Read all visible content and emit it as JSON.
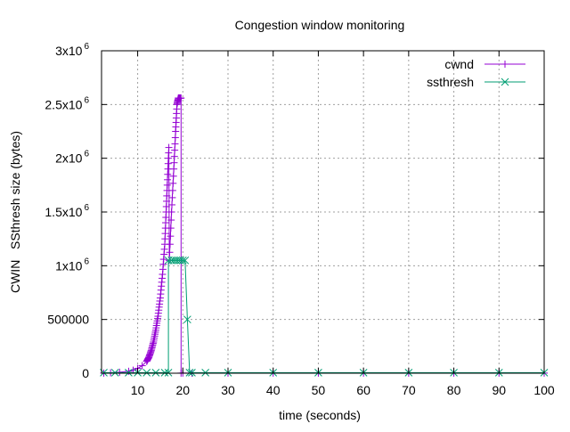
{
  "chart_data": {
    "type": "line",
    "title": "Congestion window monitoring",
    "xlabel": "time (seconds)",
    "ylabel": "CWIN   SSthresh size (bytes)",
    "xlim": [
      2,
      100
    ],
    "ylim": [
      0,
      3000000
    ],
    "grid": true,
    "legend_position": "top-right",
    "x_ticks": [
      {
        "value": 10,
        "label": "10"
      },
      {
        "value": 20,
        "label": "20"
      },
      {
        "value": 30,
        "label": "30"
      },
      {
        "value": 40,
        "label": "40"
      },
      {
        "value": 50,
        "label": "50"
      },
      {
        "value": 60,
        "label": "60"
      },
      {
        "value": 70,
        "label": "70"
      },
      {
        "value": 80,
        "label": "80"
      },
      {
        "value": 90,
        "label": "90"
      },
      {
        "value": 100,
        "label": "100"
      }
    ],
    "y_ticks": [
      {
        "value": 0,
        "label": "0",
        "exp": ""
      },
      {
        "value": 500000,
        "label": "500000",
        "exp": ""
      },
      {
        "value": 1000000,
        "label": "1x10",
        "exp": "6"
      },
      {
        "value": 1500000,
        "label": "1.5x10",
        "exp": "6"
      },
      {
        "value": 2000000,
        "label": "2x10",
        "exp": "6"
      },
      {
        "value": 2500000,
        "label": "2.5x10",
        "exp": "6"
      },
      {
        "value": 3000000,
        "label": "3x10",
        "exp": "6"
      }
    ],
    "series": [
      {
        "name": "cwnd",
        "color": "#9400d3",
        "marker": "plus",
        "x": [
          2.5,
          4,
          6,
          8,
          9,
          10,
          11,
          12,
          12.5,
          13,
          13.5,
          14,
          14.5,
          15,
          15.5,
          16,
          16.3,
          16.6,
          16.9,
          17.0,
          17.5,
          18,
          18.4,
          18.7,
          19,
          19.3,
          19.6,
          19.6,
          20,
          22,
          30,
          40,
          50,
          60,
          70,
          80,
          90,
          100
        ],
        "y": [
          1000,
          4000,
          9000,
          18000,
          28000,
          45000,
          70000,
          110000,
          150000,
          210000,
          290000,
          400000,
          530000,
          700000,
          920000,
          1200000,
          1500000,
          1800000,
          2100000,
          1050000,
          1500000,
          1900000,
          2250000,
          2500000,
          2560000,
          2560000,
          2560000,
          1000,
          1000,
          1000,
          1000,
          1000,
          1000,
          1000,
          1000,
          1000,
          1000,
          1000
        ]
      },
      {
        "name": "ssthresh",
        "color": "#009e73",
        "marker": "cross",
        "x": [
          2.5,
          5,
          8,
          10,
          12,
          14,
          16,
          16.8,
          16.8,
          17.5,
          18,
          18.5,
          19,
          19.5,
          20,
          20.5,
          21,
          21.5,
          22,
          25,
          30,
          40,
          50,
          60,
          70,
          80,
          90,
          100
        ],
        "y": [
          5000,
          5000,
          5000,
          5000,
          5000,
          5000,
          5000,
          5000,
          1050000,
          1050000,
          1050000,
          1050000,
          1050000,
          1050000,
          1050000,
          1050000,
          500000,
          5000,
          5000,
          5000,
          5000,
          5000,
          5000,
          5000,
          5000,
          5000,
          5000,
          5000
        ]
      }
    ]
  }
}
